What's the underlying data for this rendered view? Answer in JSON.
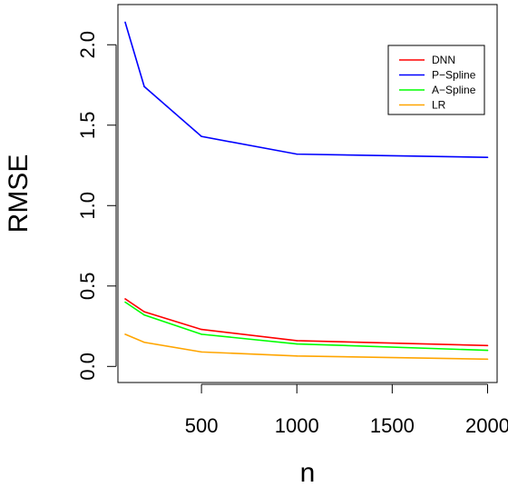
{
  "chart_data": {
    "type": "line",
    "xlabel": "n",
    "ylabel": "RMSE",
    "xlim": [
      62,
      2050
    ],
    "ylim": [
      -0.1,
      2.25
    ],
    "x": [
      100,
      200,
      500,
      1000,
      2000
    ],
    "x_ticks": [
      500,
      1000,
      1500,
      2000
    ],
    "x_tick_labels": [
      "500",
      "1000",
      "1500",
      "2000"
    ],
    "y_ticks": [
      0.0,
      0.5,
      1.0,
      1.5,
      2.0
    ],
    "y_tick_labels": [
      "0.0",
      "0.5",
      "1.0",
      "1.5",
      "2.0"
    ],
    "grid": false,
    "legend_position": "top-right",
    "series": [
      {
        "name": "DNN",
        "color": "#ff0000",
        "values": [
          0.42,
          0.34,
          0.23,
          0.16,
          0.13
        ]
      },
      {
        "name": "P−Spline",
        "color": "#0000ff",
        "values": [
          2.14,
          1.74,
          1.43,
          1.32,
          1.3
        ]
      },
      {
        "name": "A−Spline",
        "color": "#00ff00",
        "values": [
          0.4,
          0.32,
          0.2,
          0.14,
          0.1
        ]
      },
      {
        "name": "LR",
        "color": "#ffa500",
        "values": [
          0.2,
          0.15,
          0.09,
          0.065,
          0.045
        ]
      }
    ]
  }
}
